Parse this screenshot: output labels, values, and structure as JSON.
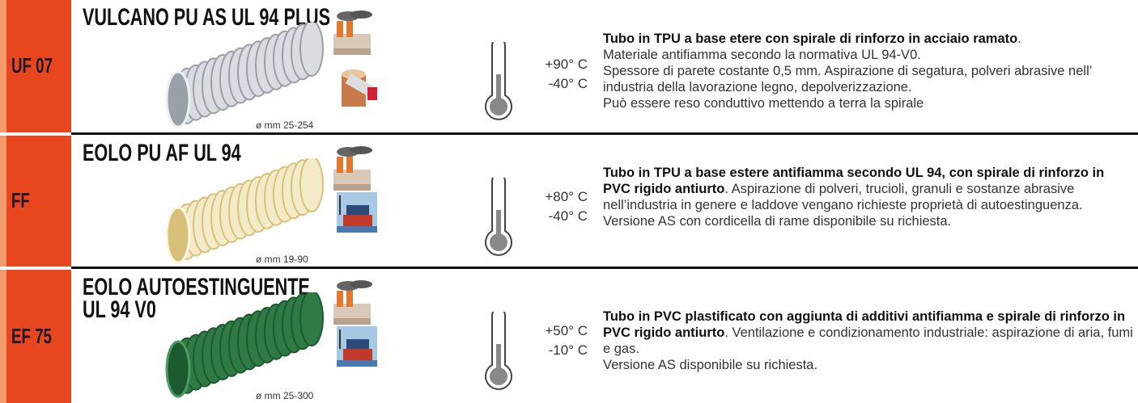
{
  "rows": [
    {
      "code": "UF 07",
      "name_lines": [
        "VULCANO PU AS UL 94 PLUS"
      ],
      "diameter": "ø mm 25-254",
      "temp_max": "+90° C",
      "temp_min": "-40° C",
      "description_bold": "Tubo in TPU a base etere con spirale di rinforzo in acciaio ramato",
      "description_text": ".",
      "paragraphs": [
        "Materiale antifiamma secondo la normativa UL 94-V0.",
        "Spessore di parete costante 0,5 mm. Aspirazione di segatura, polveri abrasive nell’ industria della lavorazione legno, depolverizzazione.",
        "Può essere reso conduttivo mettendo a terra la spirale"
      ]
    },
    {
      "code": "FF",
      "name_lines": [
        "EOLO PU AF UL 94"
      ],
      "diameter": "ø mm 19-90",
      "temp_max": "+80° C",
      "temp_min": "-40° C",
      "description_bold": "Tubo in TPU a base estere antifiamma secondo UL 94, con spirale di rinforzo in PVC rigido antiurto",
      "description_text": ". Aspirazione di polveri, trucioli, granuli e sostanze abrasive nell’industria in genere e laddove vengano richieste proprietà di autoestinguenza.",
      "paragraphs": [
        "Versione AS con cordicella di rame disponibile su richiesta."
      ]
    },
    {
      "code": "EF 75",
      "name_lines": [
        "EOLO AUTOESTINGUENTE",
        "UL 94 V0"
      ],
      "diameter": "ø mm 25-300",
      "temp_max": "+50° C",
      "temp_min": "-10° C",
      "description_bold": "Tubo in PVC plastificato con aggiunta di additivi antifiamma e spirale di rinforzo in PVC rigido antiurto",
      "description_text": ". Ventilazione e condizionamento industriale: aspirazione di aria, fumi e gas.",
      "paragraphs": [
        "Versione AS disponibile su richiesta."
      ]
    }
  ]
}
